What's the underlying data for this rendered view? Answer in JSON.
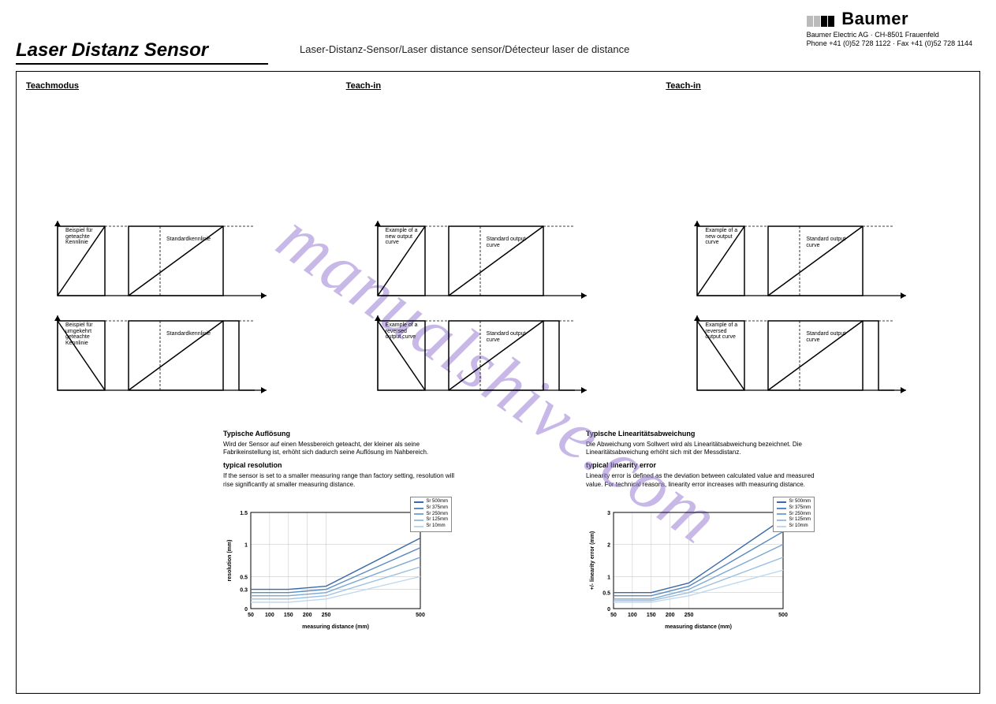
{
  "brand": {
    "name": "Baumer",
    "company_line1": "Baumer Electric AG · CH-8501 Frauenfeld",
    "company_line2": "Phone +41 (0)52 728 1122 · Fax +41 (0)52 728 1144"
  },
  "page_title": "Laser Distanz Sensor",
  "page_subtitle": "Laser-Distanz-Sensor/Laser distance sensor/Détecteur laser de distance",
  "columns": [
    {
      "title": "Teachmodus",
      "diag1_left": "Beispiel für geteachte Kennlinie",
      "diag1_right": "Standardkennlinie",
      "diag2_left": "Beispiel für umgekehrt geteachte Kennlinie",
      "diag2_right": "Standardkennlinie"
    },
    {
      "title": "Teach-in",
      "diag1_left": "Example of a new output curve",
      "diag1_right": "Standard output curve",
      "diag2_left": "Example of a reversed output curve",
      "diag2_right": "Standard output curve"
    },
    {
      "title": "Teach-in",
      "diag1_left": "Example of a new output curve",
      "diag1_right": "Standard output curve",
      "diag2_left": "Example of a reversed output curve",
      "diag2_right": "Standard output curve"
    }
  ],
  "resolution_block": {
    "title_de": "Typische Auflösung",
    "text_de": "Wird der Sensor auf einen Messbereich geteacht, der kleiner als seine Fabrikeinstellung ist, erhöht sich dadurch seine Auflösung im Nahbereich.",
    "title_en": "typical resolution",
    "text_en": "If the sensor is set to a smaller measuring range than factory setting, resolution will rise significantly at smaller measuring distance.",
    "chart": {
      "type": "line",
      "xlabel": "measuring distance (mm)",
      "ylabel": "resolution (mm)",
      "xlim": [
        50,
        500
      ],
      "ylim": [
        0,
        1.5
      ],
      "xticks": [
        50,
        100,
        150,
        200,
        250,
        500
      ],
      "yticks": [
        0,
        0.3,
        0.5,
        1.0,
        1.5
      ],
      "grid_color": "#cccccc",
      "background": "#ffffff",
      "series": [
        {
          "label": "Sr 500mm",
          "color": "#3a6aa8",
          "points": [
            [
              50,
              0.3
            ],
            [
              150,
              0.3
            ],
            [
              250,
              0.35
            ],
            [
              500,
              1.1
            ]
          ]
        },
        {
          "label": "Sr 375mm",
          "color": "#5a8ac0",
          "points": [
            [
              50,
              0.25
            ],
            [
              150,
              0.25
            ],
            [
              250,
              0.3
            ],
            [
              500,
              0.95
            ]
          ]
        },
        {
          "label": "Sr 250mm",
          "color": "#7aa8d4",
          "points": [
            [
              50,
              0.2
            ],
            [
              150,
              0.2
            ],
            [
              250,
              0.25
            ],
            [
              500,
              0.8
            ]
          ]
        },
        {
          "label": "Sr 125mm",
          "color": "#9cc0e2",
          "points": [
            [
              50,
              0.15
            ],
            [
              150,
              0.15
            ],
            [
              250,
              0.2
            ],
            [
              500,
              0.65
            ]
          ]
        },
        {
          "label": "Sr 10mm",
          "color": "#c0d8ee",
          "points": [
            [
              50,
              0.1
            ],
            [
              150,
              0.1
            ],
            [
              250,
              0.15
            ],
            [
              500,
              0.5
            ]
          ]
        }
      ]
    }
  },
  "linearity_block": {
    "title_de": "Typische Linearitätsabweichung",
    "text_de": "Die Abweichung vom Sollwert wird als Linearitätsabweichung bezeichnet. Die Linearitätsabweichung erhöht sich mit der Messdistanz.",
    "title_en": "typical linearity error",
    "text_en": "Linearity error is defined as the deviation between calculated value and measured value. For technical reasons, linearity error increases with measuring distance.",
    "chart": {
      "type": "line",
      "xlabel": "measuring distance (mm)",
      "ylabel": "+/- linearity error (mm)",
      "xlim": [
        50,
        500
      ],
      "ylim": [
        0,
        3
      ],
      "xticks": [
        50,
        100,
        150,
        200,
        250,
        500
      ],
      "yticks": [
        0,
        0.5,
        1,
        2,
        3
      ],
      "grid_color": "#cccccc",
      "background": "#ffffff",
      "series": [
        {
          "label": "Sr 500mm",
          "color": "#3a6aa8",
          "points": [
            [
              50,
              0.5
            ],
            [
              150,
              0.5
            ],
            [
              250,
              0.8
            ],
            [
              500,
              2.8
            ]
          ]
        },
        {
          "label": "Sr 375mm",
          "color": "#5a8ac0",
          "points": [
            [
              50,
              0.4
            ],
            [
              150,
              0.4
            ],
            [
              250,
              0.7
            ],
            [
              500,
              2.4
            ]
          ]
        },
        {
          "label": "Sr 250mm",
          "color": "#7aa8d4",
          "points": [
            [
              50,
              0.3
            ],
            [
              150,
              0.3
            ],
            [
              250,
              0.6
            ],
            [
              500,
              2.0
            ]
          ]
        },
        {
          "label": "Sr 125mm",
          "color": "#9cc0e2",
          "points": [
            [
              50,
              0.25
            ],
            [
              150,
              0.25
            ],
            [
              250,
              0.5
            ],
            [
              500,
              1.6
            ]
          ]
        },
        {
          "label": "Sr 10mm",
          "color": "#c0d8ee",
          "points": [
            [
              50,
              0.2
            ],
            [
              150,
              0.2
            ],
            [
              250,
              0.4
            ],
            [
              500,
              1.2
            ]
          ]
        }
      ]
    }
  },
  "watermark": "manualshive.com"
}
